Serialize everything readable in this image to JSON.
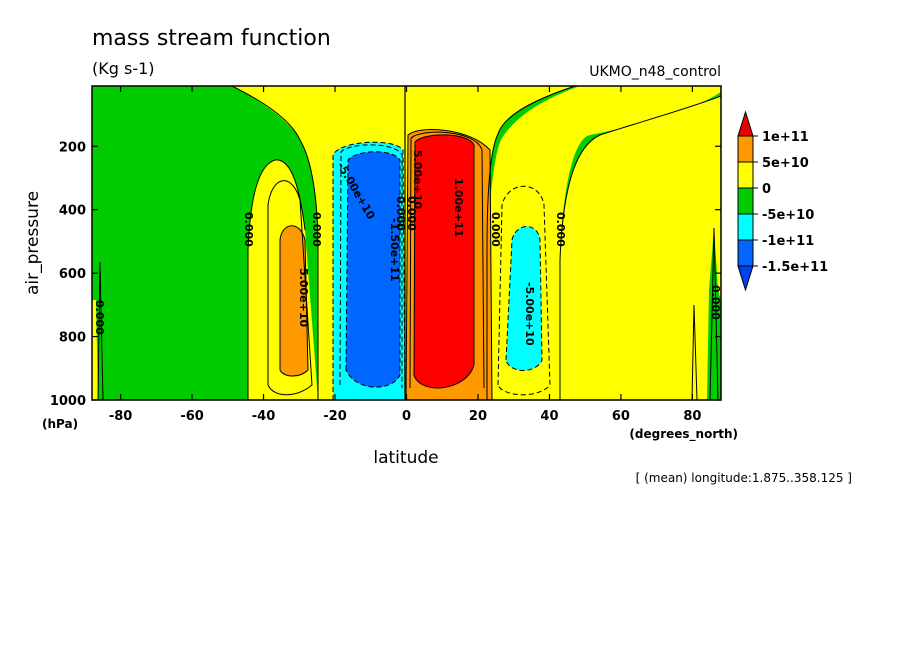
{
  "chart_data": {
    "type": "heatmap",
    "title": "mass stream function",
    "subtitle": "(Kg s-1)",
    "run_label": "UKMO_n48_control",
    "xlabel": "latitude",
    "xunit": "(degrees_north)",
    "ylabel": "air_pressure",
    "yunit": "(hPa)",
    "footnote": "[ (mean) longitude:1.875..358.125 ]",
    "xlim": [
      -88,
      88
    ],
    "ylim": [
      1000,
      10
    ],
    "x_ticks": [
      -80,
      -60,
      -40,
      -20,
      0,
      20,
      40,
      60,
      80
    ],
    "y_ticks": [
      200,
      400,
      600,
      800,
      1000
    ],
    "legend": {
      "labels": [
        "1e+11",
        "5e+10",
        "0",
        "-5e+10",
        "-1e+11",
        "-1.5e+11"
      ],
      "colors": [
        "#ff0000",
        "#ff9900",
        "#ffff00",
        "#00cc00",
        "#00ffff",
        "#0066ff",
        "#e60000",
        "#0044ee"
      ]
    },
    "cells": [
      {
        "name": "north-hadley-cell",
        "center": [
          11,
          560
        ],
        "extent_lat": [
          2,
          24
        ],
        "extent_p": [
          110,
          1000
        ],
        "peak": 130000000000.0
      },
      {
        "name": "south-hadley-cell",
        "center": [
          -8,
          560
        ],
        "extent_lat": [
          -23,
          0
        ],
        "extent_p": [
          130,
          1000
        ],
        "peak": -160000000000.0
      },
      {
        "name": "south-ferrel-cell",
        "center": [
          -32,
          620
        ],
        "extent_lat": [
          -45,
          -23
        ],
        "extent_p": [
          280,
          1000
        ],
        "peak": 65000000000.0
      },
      {
        "name": "north-ferrel-cell",
        "center": [
          33,
          650
        ],
        "extent_lat": [
          25,
          42
        ],
        "extent_p": [
          300,
          1000
        ],
        "peak": -70000000000.0
      }
    ],
    "contour_labels": [
      "0.000",
      "0.000",
      "0.000",
      "0.000",
      "0.000",
      "0.000",
      "5.00e+10",
      "5.00e+10",
      "-5.00e+10",
      "-5.00e+10",
      "1.00e+11",
      "-1.50e+11",
      "0.000",
      "0.000"
    ]
  }
}
